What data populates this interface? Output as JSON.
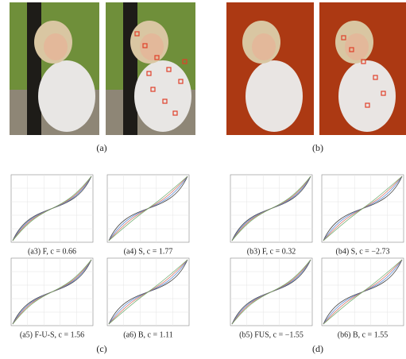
{
  "panels": {
    "a": {
      "label": "(a)"
    },
    "b": {
      "label": "(b)"
    },
    "c": {
      "label": "(c)",
      "plots": [
        {
          "caption": "(a3) F, c = 0.66"
        },
        {
          "caption": "(a4) S, c = 1.77"
        },
        {
          "caption": "(a5) F-U-S, c = 1.56"
        },
        {
          "caption": "(a6) B, c = 1.11"
        }
      ]
    },
    "d": {
      "label": "(d)",
      "plots": [
        {
          "caption": "(b3) F, c = 0.32"
        },
        {
          "caption": "(b4) S, c = −2.73"
        },
        {
          "caption": "(b5) FUS, c = −1.55"
        },
        {
          "caption": "(b6) B, c = 1.55"
        }
      ]
    }
  }
}
